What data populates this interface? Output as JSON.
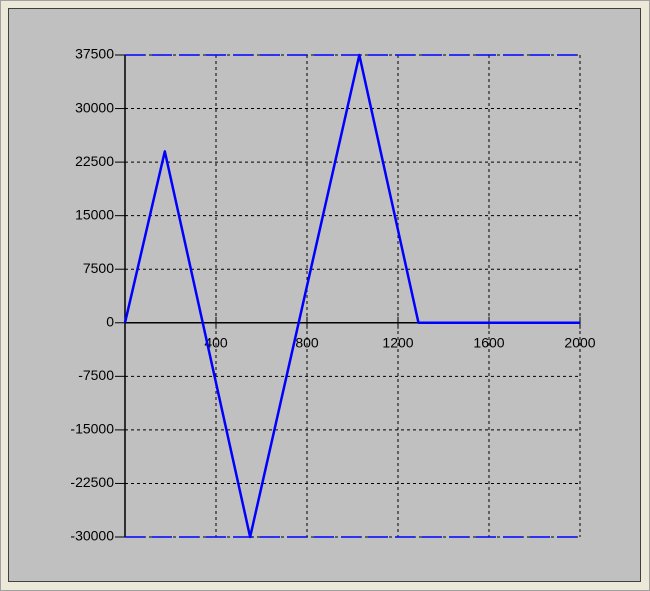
{
  "chart_data": {
    "type": "line",
    "x": [
      0,
      175,
      550,
      1030,
      1290,
      2000
    ],
    "series": [
      {
        "color": "#0000ff",
        "values": [
          0,
          24000,
          -30000,
          37500,
          0,
          0
        ]
      }
    ],
    "limit_lines": [
      37500,
      -30000
    ],
    "limit_color": "#0000ff",
    "xlim": [
      0,
      2000
    ],
    "xticks": [
      400,
      800,
      1200,
      1600,
      2000
    ],
    "ylim": [
      -30000,
      37500
    ],
    "yticks": [
      37500,
      30000,
      22500,
      15000,
      7500,
      0,
      -7500,
      -15000,
      -22500,
      -30000
    ],
    "grid": true
  }
}
